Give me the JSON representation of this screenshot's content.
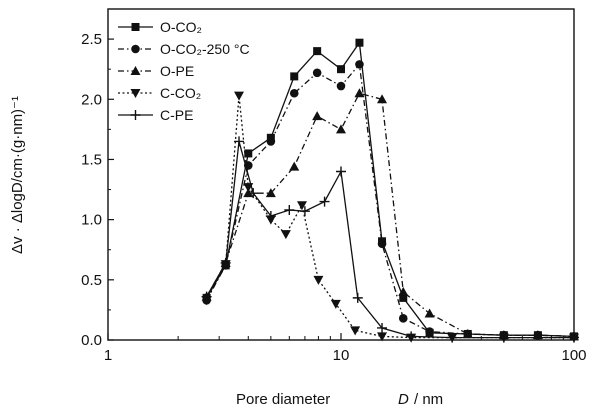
{
  "chart_data": {
    "type": "line",
    "xscale": "log",
    "xlim": [
      1,
      100
    ],
    "ylim": [
      0,
      2.75
    ],
    "x_ticks": [
      "1",
      "10",
      "100"
    ],
    "y_ticks": [
      "0.0",
      "0.5",
      "1.0",
      "1.5",
      "2.0",
      "2.5"
    ],
    "xlabel": "Pore diameter",
    "xlabel_symbol": "D",
    "xlabel_unit": "/ nm",
    "ylabel": "Δv · ΔlogD/cm·(g·nm)⁻¹",
    "grid": false,
    "legend_position": "top-left",
    "series": [
      {
        "name": "O-CO₂",
        "marker": "square",
        "dash": "solid",
        "color": "#111111",
        "x": [
          2.65,
          3.2,
          4.0,
          5.0,
          6.3,
          7.9,
          10.0,
          12.0,
          15.0,
          18.5,
          24.0,
          35.0,
          50.0,
          70.0,
          100.0
        ],
        "y": [
          0.35,
          0.62,
          1.55,
          1.68,
          2.19,
          2.4,
          2.25,
          2.47,
          0.82,
          0.35,
          0.06,
          0.05,
          0.04,
          0.04,
          0.03
        ]
      },
      {
        "name": "O-CO₂-250 °C",
        "marker": "circle",
        "dash": "dashdot",
        "color": "#111111",
        "x": [
          2.65,
          3.2,
          4.0,
          5.0,
          6.3,
          7.9,
          10.0,
          12.0,
          15.0,
          18.5,
          24.0,
          35.0,
          50.0,
          70.0,
          100.0
        ],
        "y": [
          0.33,
          0.62,
          1.45,
          1.65,
          2.05,
          2.22,
          2.11,
          2.29,
          0.8,
          0.18,
          0.07,
          0.05,
          0.04,
          0.04,
          0.03
        ]
      },
      {
        "name": "O-PE",
        "marker": "triangle-up",
        "dash": "dashdot",
        "color": "#111111",
        "x": [
          2.65,
          3.2,
          4.0,
          5.0,
          6.3,
          7.9,
          10.0,
          12.0,
          15.0,
          18.5,
          24.0,
          35.0,
          50.0,
          70.0,
          100.0
        ],
        "y": [
          0.36,
          0.64,
          1.22,
          1.22,
          1.44,
          1.86,
          1.75,
          2.05,
          2.0,
          0.4,
          0.22,
          0.05,
          0.04,
          0.04,
          0.03
        ]
      },
      {
        "name": "C-CO₂",
        "marker": "triangle-down",
        "dash": "dotted",
        "color": "#111111",
        "x": [
          2.65,
          3.2,
          3.65,
          4.0,
          5.0,
          5.8,
          6.8,
          8.0,
          9.5,
          11.5,
          15.0,
          20.0,
          30.0,
          50.0,
          100.0
        ],
        "y": [
          0.33,
          0.63,
          2.03,
          1.27,
          1.0,
          0.88,
          1.12,
          0.5,
          0.3,
          0.08,
          0.03,
          0.02,
          0.02,
          0.02,
          0.02
        ]
      },
      {
        "name": "C-PE",
        "marker": "plus",
        "dash": "solid",
        "color": "#111111",
        "x": [
          2.65,
          3.2,
          3.65,
          4.2,
          5.0,
          6.0,
          7.0,
          8.5,
          10.0,
          11.8,
          15.0,
          20.0,
          30.0,
          50.0,
          100.0
        ],
        "y": [
          0.36,
          0.64,
          1.65,
          1.22,
          1.03,
          1.08,
          1.07,
          1.15,
          1.4,
          0.35,
          0.1,
          0.03,
          0.02,
          0.02,
          0.02
        ]
      }
    ]
  }
}
